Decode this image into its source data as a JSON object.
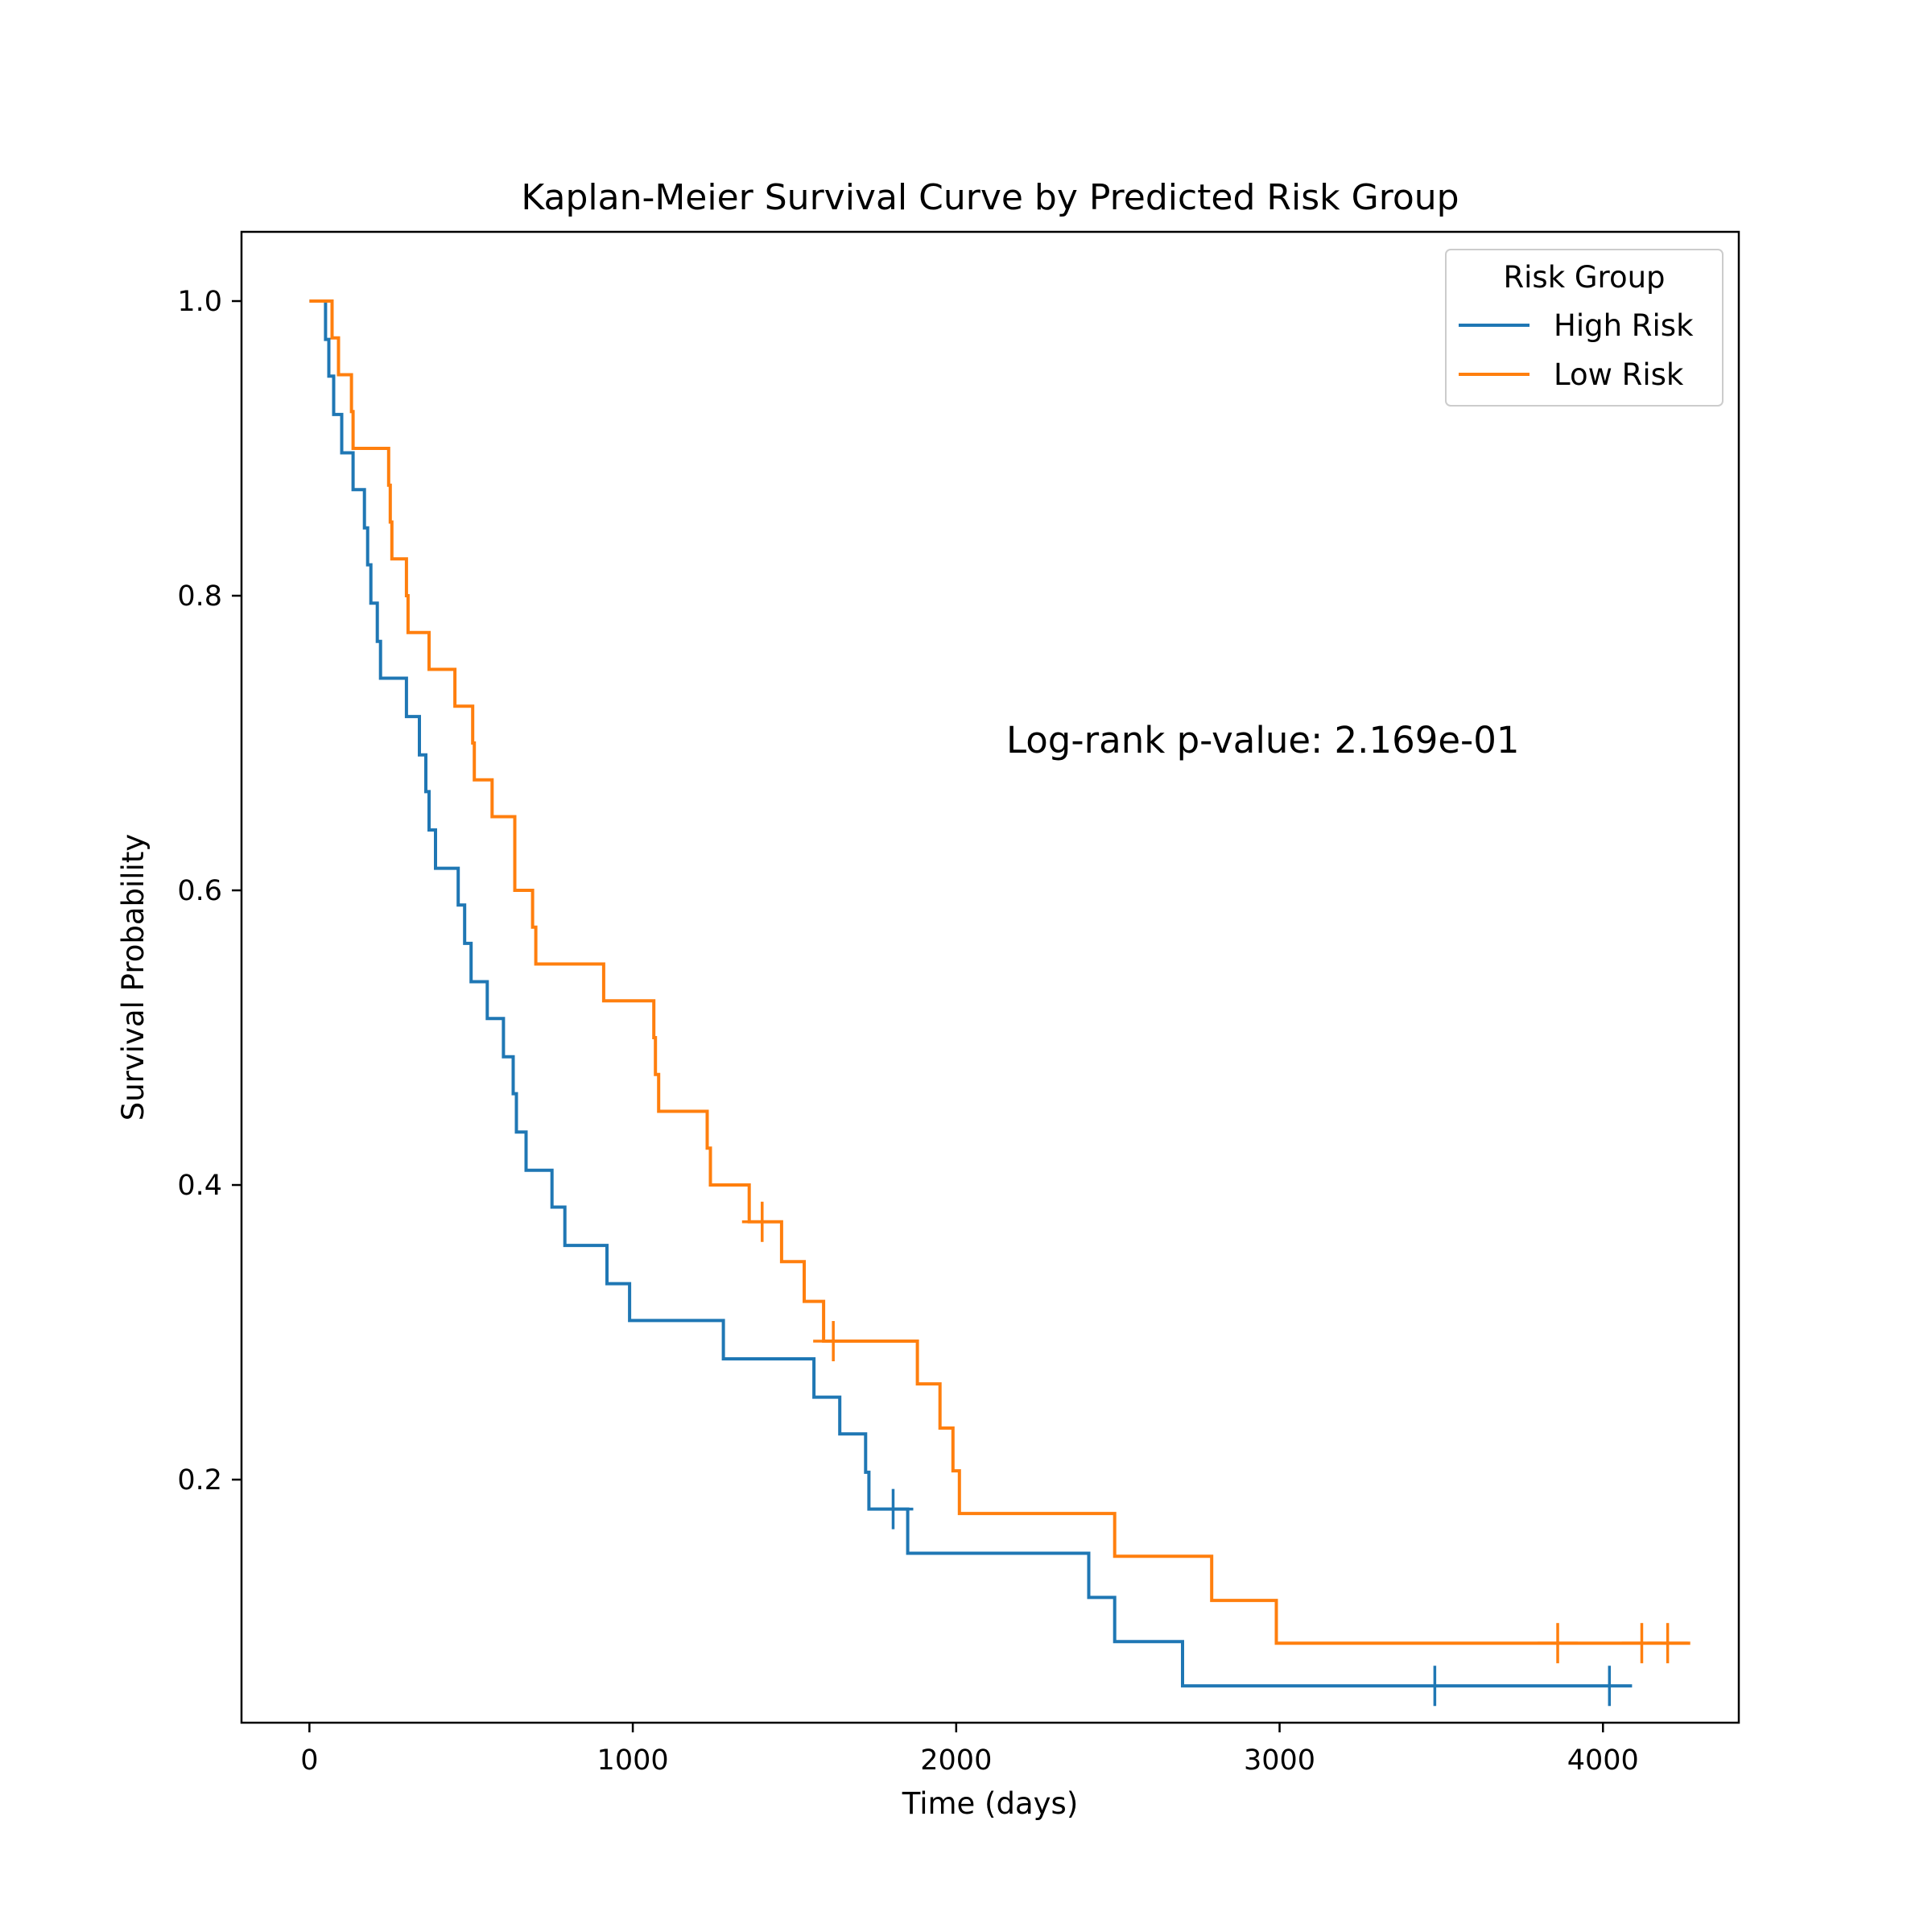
{
  "chart_data": {
    "type": "line",
    "title": "Kaplan-Meier Survival Curve by Predicted Risk Group",
    "xlabel": "Time (days)",
    "ylabel": "Survival Probability",
    "xlim": [
      -210,
      4420
    ],
    "ylim": [
      0.035,
      1.047
    ],
    "xticks": [
      0,
      1000,
      2000,
      3000,
      4000
    ],
    "xtick_labels": [
      "0",
      "1000",
      "2000",
      "3000",
      "4000"
    ],
    "yticks": [
      0.2,
      0.4,
      0.6,
      0.8,
      1.0
    ],
    "ytick_labels": [
      "0.2",
      "0.4",
      "0.6",
      "0.8",
      "1.0"
    ],
    "grid": false,
    "legend": {
      "title": "Risk Group",
      "placement": "top-right",
      "entries": [
        "High Risk",
        "Low Risk"
      ]
    },
    "annotation": "Log-rank p-value: 2.169e-01",
    "series": [
      {
        "name": "High Risk",
        "color": "#1f77b4",
        "step": "post",
        "x": [
          0,
          50,
          60,
          75,
          100,
          135,
          170,
          180,
          190,
          200,
          210,
          220,
          300,
          340,
          360,
          370,
          390,
          460,
          480,
          500,
          550,
          600,
          630,
          640,
          670,
          750,
          790,
          920,
          990,
          1280,
          1560,
          1640,
          1720,
          1730,
          1800,
          1850,
          2410,
          2490,
          2700,
          3480,
          4020,
          4090
        ],
        "y": [
          1.0,
          0.974,
          0.949,
          0.923,
          0.897,
          0.872,
          0.846,
          0.821,
          0.795,
          0.795,
          0.769,
          0.744,
          0.718,
          0.692,
          0.667,
          0.641,
          0.615,
          0.59,
          0.564,
          0.538,
          0.513,
          0.487,
          0.462,
          0.436,
          0.41,
          0.385,
          0.359,
          0.333,
          0.308,
          0.282,
          0.256,
          0.231,
          0.205,
          0.18,
          0.18,
          0.15,
          0.12,
          0.09,
          0.06,
          0.06,
          0.06,
          0.06
        ],
        "censored": [
          {
            "x": 1805,
            "y": 0.18
          },
          {
            "x": 3480,
            "y": 0.06
          },
          {
            "x": 4020,
            "y": 0.06
          }
        ]
      },
      {
        "name": "Low Risk",
        "color": "#ff7f0e",
        "step": "post",
        "x": [
          0,
          70,
          80,
          90,
          130,
          135,
          245,
          250,
          255,
          300,
          305,
          370,
          450,
          505,
          510,
          530,
          565,
          635,
          690,
          700,
          910,
          1065,
          1070,
          1080,
          1230,
          1240,
          1360,
          1400,
          1460,
          1530,
          1590,
          1620,
          1880,
          1950,
          1990,
          2010,
          2490,
          2790,
          2990,
          3860,
          4120,
          4200,
          4270
        ],
        "y": [
          1.0,
          0.975,
          0.975,
          0.95,
          0.925,
          0.9,
          0.875,
          0.85,
          0.825,
          0.8,
          0.775,
          0.75,
          0.725,
          0.7,
          0.675,
          0.675,
          0.65,
          0.6,
          0.575,
          0.55,
          0.525,
          0.5,
          0.475,
          0.45,
          0.425,
          0.4,
          0.375,
          0.375,
          0.348,
          0.321,
          0.294,
          0.294,
          0.265,
          0.235,
          0.206,
          0.177,
          0.148,
          0.118,
          0.089,
          0.089,
          0.089,
          0.089,
          0.089
        ],
        "censored": [
          {
            "x": 1400,
            "y": 0.375
          },
          {
            "x": 1620,
            "y": 0.294
          },
          {
            "x": 3860,
            "y": 0.089
          },
          {
            "x": 4120,
            "y": 0.089
          },
          {
            "x": 4200,
            "y": 0.089
          }
        ]
      }
    ]
  }
}
